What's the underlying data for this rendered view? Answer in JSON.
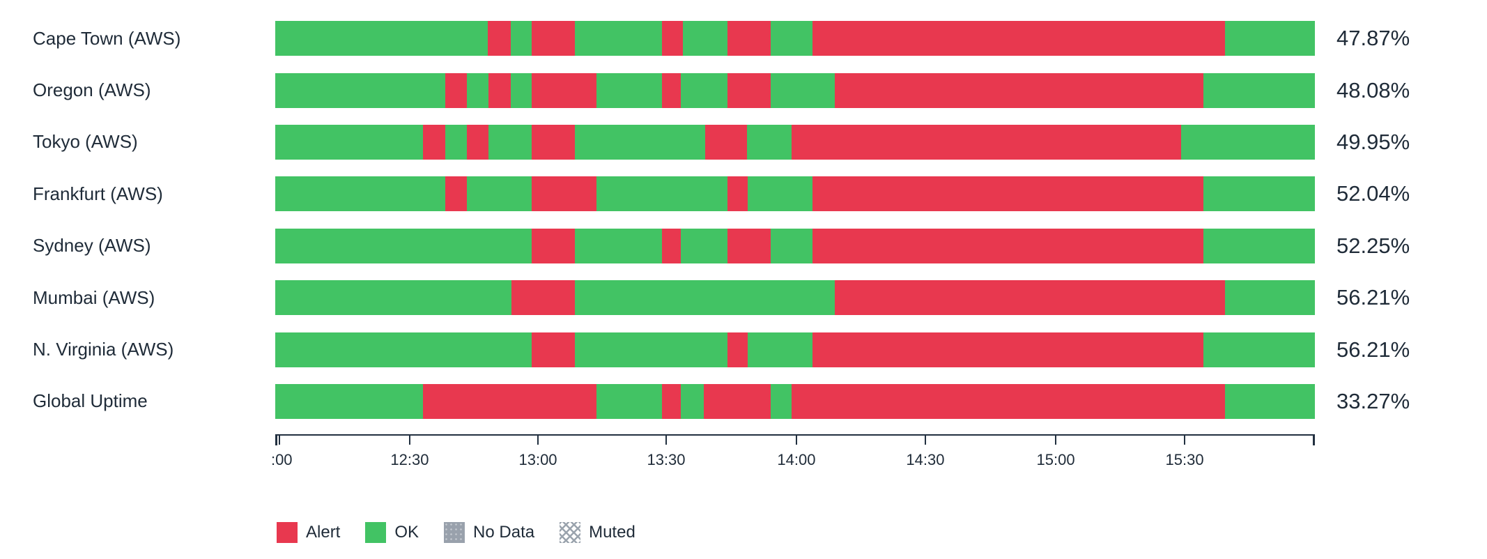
{
  "chart_data": {
    "type": "bar",
    "orientation": "horizontal",
    "stacked": true,
    "note": "status timeline; segment widths are percent of the visible time window 12:00-16:00",
    "colors": {
      "alert": "#e8384f",
      "ok": "#42c364",
      "nodata": "#99a1ac",
      "axis": "#223040",
      "text": "#1f2b38"
    },
    "rows": [
      {
        "label": "Cape Town (AWS)",
        "value": "47.87%",
        "segments": [
          [
            "ok",
            20.44
          ],
          [
            "alert",
            2.21
          ],
          [
            "ok",
            2.01
          ],
          [
            "alert",
            4.16
          ],
          [
            "ok",
            8.38
          ],
          [
            "alert",
            2.01
          ],
          [
            "ok",
            4.29
          ],
          [
            "alert",
            4.16
          ],
          [
            "ok",
            4.02
          ],
          [
            "alert",
            39.68
          ],
          [
            "ok",
            8.64
          ]
        ]
      },
      {
        "label": "Oregon (AWS)",
        "value": "48.08%",
        "segments": [
          [
            "ok",
            16.35
          ],
          [
            "alert",
            2.08
          ],
          [
            "ok",
            2.08
          ],
          [
            "alert",
            2.14
          ],
          [
            "ok",
            2.01
          ],
          [
            "alert",
            6.23
          ],
          [
            "ok",
            6.3
          ],
          [
            "alert",
            1.81
          ],
          [
            "ok",
            4.49
          ],
          [
            "alert",
            4.16
          ],
          [
            "ok",
            6.17
          ],
          [
            "alert",
            35.46
          ],
          [
            "ok",
            10.72
          ]
        ]
      },
      {
        "label": "Tokyo (AWS)",
        "value": "49.95%",
        "segments": [
          [
            "ok",
            14.21
          ],
          [
            "alert",
            2.14
          ],
          [
            "ok",
            2.08
          ],
          [
            "alert",
            2.08
          ],
          [
            "ok",
            4.16
          ],
          [
            "alert",
            4.16
          ],
          [
            "ok",
            12.53
          ],
          [
            "alert",
            4.02
          ],
          [
            "ok",
            4.29
          ],
          [
            "alert",
            37.47
          ],
          [
            "ok",
            12.86
          ]
        ]
      },
      {
        "label": "Frankfurt (AWS)",
        "value": "52.04%",
        "segments": [
          [
            "ok",
            16.35
          ],
          [
            "alert",
            2.08
          ],
          [
            "ok",
            6.23
          ],
          [
            "alert",
            6.23
          ],
          [
            "ok",
            12.6
          ],
          [
            "alert",
            1.94
          ],
          [
            "ok",
            6.23
          ],
          [
            "alert",
            37.6
          ],
          [
            "ok",
            10.74
          ]
        ]
      },
      {
        "label": "Sydney (AWS)",
        "value": "52.25%",
        "segments": [
          [
            "ok",
            24.66
          ],
          [
            "alert",
            4.16
          ],
          [
            "ok",
            8.38
          ],
          [
            "alert",
            1.81
          ],
          [
            "ok",
            4.49
          ],
          [
            "alert",
            4.16
          ],
          [
            "ok",
            4.02
          ],
          [
            "alert",
            37.6
          ],
          [
            "ok",
            10.72
          ]
        ]
      },
      {
        "label": "Mumbai (AWS)",
        "value": "56.21%",
        "segments": [
          [
            "ok",
            22.72
          ],
          [
            "alert",
            6.1
          ],
          [
            "ok",
            25.0
          ],
          [
            "alert",
            37.53
          ],
          [
            "ok",
            8.65
          ]
        ]
      },
      {
        "label": "N. Virginia (AWS)",
        "value": "56.21%",
        "segments": [
          [
            "ok",
            24.66
          ],
          [
            "alert",
            4.16
          ],
          [
            "ok",
            14.68
          ],
          [
            "alert",
            1.94
          ],
          [
            "ok",
            6.23
          ],
          [
            "alert",
            37.6
          ],
          [
            "ok",
            10.73
          ]
        ]
      },
      {
        "label": "Global Uptime",
        "value": "33.27%",
        "segments": [
          [
            "ok",
            14.21
          ],
          [
            "alert",
            16.69
          ],
          [
            "ok",
            6.3
          ],
          [
            "alert",
            1.81
          ],
          [
            "ok",
            2.21
          ],
          [
            "alert",
            6.43
          ],
          [
            "ok",
            2.01
          ],
          [
            "alert",
            41.69
          ],
          [
            "ok",
            8.65
          ]
        ]
      }
    ],
    "x_ticks": [
      {
        "label": ":00",
        "pos": 0.4,
        "align": "left"
      },
      {
        "label": "12:30",
        "pos": 12.93
      },
      {
        "label": "13:00",
        "pos": 25.27
      },
      {
        "label": "13:30",
        "pos": 37.6
      },
      {
        "label": "14:00",
        "pos": 50.13
      },
      {
        "label": "14:30",
        "pos": 62.53
      },
      {
        "label": "15:00",
        "pos": 75.07
      },
      {
        "label": "15:30",
        "pos": 87.47
      }
    ],
    "legend": [
      {
        "key": "alert",
        "label": "Alert"
      },
      {
        "key": "ok",
        "label": "OK"
      },
      {
        "key": "nodata",
        "label": "No Data"
      },
      {
        "key": "muted",
        "label": "Muted"
      }
    ]
  }
}
